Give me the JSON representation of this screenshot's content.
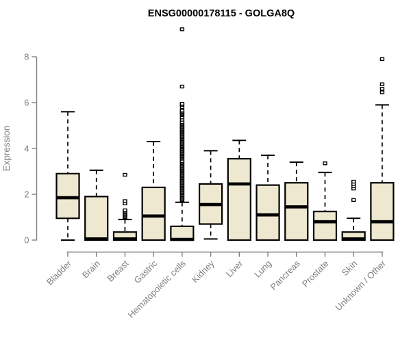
{
  "chart_data": {
    "type": "boxplot",
    "title": "ENSG00000178115 - GOLGA8Q",
    "ylabel": "Expression",
    "xlabel": "",
    "ylim": [
      0,
      9.4
    ],
    "yticks": [
      0,
      2,
      4,
      6,
      8
    ],
    "grid": false,
    "legend": "none",
    "categories": [
      "Bladder",
      "Brain",
      "Breast",
      "Gastric",
      "Hematopoietic cells",
      "Kidney",
      "Liver",
      "Lung",
      "Pancreas",
      "Prostate",
      "Skin",
      "Unknown / Other"
    ],
    "series": [
      {
        "name": "Bladder",
        "whisker_low": 0,
        "q1": 0.95,
        "median": 1.85,
        "q3": 2.9,
        "whisker_high": 5.6,
        "outliers": []
      },
      {
        "name": "Brain",
        "whisker_low": 0,
        "q1": 0,
        "median": 0.05,
        "q3": 1.9,
        "whisker_high": 3.05,
        "outliers": []
      },
      {
        "name": "Breast",
        "whisker_low": 0,
        "q1": 0,
        "median": 0.05,
        "q3": 0.35,
        "whisker_high": 0.9,
        "outliers": [
          1.0,
          1.05,
          1.1,
          1.15,
          1.2,
          1.25,
          1.3,
          1.6,
          1.7,
          2.85
        ]
      },
      {
        "name": "Gastric",
        "whisker_low": 0,
        "q1": 0,
        "median": 1.05,
        "q3": 2.3,
        "whisker_high": 4.3,
        "outliers": []
      },
      {
        "name": "Hematopoietic cells",
        "whisker_low": 0,
        "q1": 0,
        "median": 0.03,
        "q3": 0.6,
        "whisker_high": 1.65,
        "outliers": [
          1.75,
          1.8,
          1.85,
          1.9,
          1.95,
          2.0,
          2.05,
          2.1,
          2.15,
          2.2,
          2.25,
          2.3,
          2.35,
          2.4,
          2.45,
          2.5,
          2.55,
          2.6,
          2.65,
          2.7,
          2.75,
          2.8,
          2.85,
          2.9,
          2.95,
          3.0,
          3.05,
          3.1,
          3.15,
          3.2,
          3.25,
          3.3,
          3.35,
          3.4,
          3.45,
          3.55,
          3.6,
          3.65,
          3.7,
          3.75,
          3.8,
          3.85,
          3.9,
          3.95,
          4.0,
          4.05,
          4.1,
          4.15,
          4.2,
          4.25,
          4.3,
          4.35,
          4.4,
          4.45,
          4.5,
          4.55,
          4.6,
          4.65,
          4.7,
          4.75,
          4.8,
          4.85,
          4.9,
          4.95,
          5.0,
          5.05,
          5.1,
          5.15,
          5.25,
          5.35,
          5.45,
          5.5,
          5.55,
          5.6,
          5.65,
          5.8,
          5.9,
          5.95,
          6.7,
          9.2
        ]
      },
      {
        "name": "Kidney",
        "whisker_low": 0.05,
        "q1": 0.7,
        "median": 1.55,
        "q3": 2.45,
        "whisker_high": 3.9,
        "outliers": []
      },
      {
        "name": "Liver",
        "whisker_low": 0,
        "q1": 0,
        "median": 2.45,
        "q3": 3.55,
        "whisker_high": 4.35,
        "outliers": []
      },
      {
        "name": "Lung",
        "whisker_low": 0,
        "q1": 0,
        "median": 1.1,
        "q3": 2.4,
        "whisker_high": 3.7,
        "outliers": []
      },
      {
        "name": "Pancreas",
        "whisker_low": 0,
        "q1": 0,
        "median": 1.45,
        "q3": 2.5,
        "whisker_high": 3.4,
        "outliers": []
      },
      {
        "name": "Prostate",
        "whisker_low": 0,
        "q1": 0,
        "median": 0.8,
        "q3": 1.25,
        "whisker_high": 2.95,
        "outliers": [
          3.35
        ]
      },
      {
        "name": "Skin",
        "whisker_low": 0,
        "q1": 0,
        "median": 0.05,
        "q3": 0.35,
        "whisker_high": 0.95,
        "outliers": [
          1.75,
          2.25,
          2.35,
          2.45,
          2.55
        ]
      },
      {
        "name": "Unknown / Other",
        "whisker_low": 0,
        "q1": 0,
        "median": 0.8,
        "q3": 2.5,
        "whisker_high": 5.9,
        "outliers": [
          6.45,
          6.6,
          6.8,
          7.9
        ]
      }
    ],
    "colors": {
      "background": "#FFFFFF",
      "box_fill": "#EDE8CF",
      "box_border": "#000000",
      "median": "#000000",
      "whisker": "#000000",
      "outlier_stroke": "#000000",
      "outlier_fill": "#FFFFFF",
      "axis": "#808080",
      "tick_label": "#808080",
      "title": "#000000"
    }
  }
}
